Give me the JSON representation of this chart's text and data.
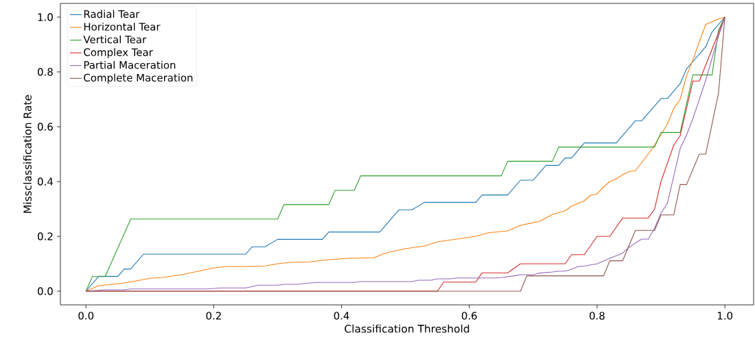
{
  "chart_data": {
    "type": "line",
    "xlabel": "Classification Threshold",
    "ylabel": "Missclassification Rate",
    "xlim": [
      -0.04,
      1.045
    ],
    "ylim": [
      -0.05,
      1.05
    ],
    "xticks": [
      {
        "value": 0,
        "label": "0.0"
      },
      {
        "value": 0.2,
        "label": "0.2"
      },
      {
        "value": 0.4,
        "label": "0.4"
      },
      {
        "value": 0.6,
        "label": "0.6"
      },
      {
        "value": 0.8,
        "label": "0.8"
      },
      {
        "value": 1,
        "label": "1.0"
      }
    ],
    "yticks": [
      {
        "value": 0,
        "label": "0.0"
      },
      {
        "value": 0.2,
        "label": "0.2"
      },
      {
        "value": 0.4,
        "label": "0.4"
      },
      {
        "value": 0.6,
        "label": "0.6"
      },
      {
        "value": 0.8,
        "label": "0.8"
      },
      {
        "value": 1,
        "label": "1.0"
      }
    ],
    "grid": false,
    "legend": "top left",
    "marker": "none",
    "line_style": "solid",
    "series": [
      {
        "name": "Radial Tear",
        "color": "#1f77b4",
        "x": [
          0,
          0.02,
          0.05,
          0.06,
          0.07,
          0.09,
          0.25,
          0.26,
          0.28,
          0.3,
          0.37,
          0.38,
          0.46,
          0.49,
          0.51,
          0.53,
          0.61,
          0.62,
          0.66,
          0.68,
          0.7,
          0.72,
          0.74,
          0.75,
          0.76,
          0.78,
          0.83,
          0.86,
          0.87,
          0.9,
          0.91,
          0.93,
          0.94,
          0.97,
          0.98,
          1.0
        ],
        "values": [
          0,
          0.054,
          0.054,
          0.081,
          0.081,
          0.135,
          0.135,
          0.162,
          0.162,
          0.189,
          0.189,
          0.216,
          0.216,
          0.297,
          0.297,
          0.324,
          0.324,
          0.351,
          0.351,
          0.405,
          0.405,
          0.459,
          0.459,
          0.486,
          0.486,
          0.541,
          0.541,
          0.622,
          0.622,
          0.703,
          0.703,
          0.757,
          0.811,
          0.892,
          0.946,
          1.0
        ]
      },
      {
        "name": "Horizontal Tear",
        "color": "#ff7f0e",
        "x": [
          0,
          0.01,
          0.02,
          0.04,
          0.06,
          0.08,
          0.1,
          0.12,
          0.15,
          0.18,
          0.2,
          0.22,
          0.25,
          0.28,
          0.3,
          0.32,
          0.35,
          0.38,
          0.41,
          0.45,
          0.47,
          0.5,
          0.53,
          0.55,
          0.58,
          0.61,
          0.63,
          0.66,
          0.68,
          0.71,
          0.73,
          0.75,
          0.76,
          0.77,
          0.78,
          0.79,
          0.8,
          0.81,
          0.82,
          0.83,
          0.84,
          0.85,
          0.86,
          0.87,
          0.88,
          0.89,
          0.91,
          0.92,
          0.93,
          0.94,
          0.95,
          0.96,
          0.97,
          0.99,
          1.0
        ],
        "values": [
          0,
          0.01,
          0.02,
          0.025,
          0.03,
          0.038,
          0.047,
          0.05,
          0.06,
          0.075,
          0.085,
          0.09,
          0.09,
          0.092,
          0.1,
          0.105,
          0.107,
          0.115,
          0.12,
          0.122,
          0.14,
          0.155,
          0.165,
          0.18,
          0.19,
          0.2,
          0.213,
          0.22,
          0.24,
          0.255,
          0.28,
          0.293,
          0.31,
          0.32,
          0.33,
          0.35,
          0.355,
          0.38,
          0.4,
          0.41,
          0.425,
          0.436,
          0.44,
          0.47,
          0.5,
          0.533,
          0.61,
          0.667,
          0.7,
          0.786,
          0.844,
          0.91,
          0.973,
          0.993,
          1.0
        ]
      },
      {
        "name": "Vertical Tear",
        "color": "#2ca02c",
        "x": [
          0,
          0.01,
          0.03,
          0.07,
          0.3,
          0.31,
          0.38,
          0.39,
          0.42,
          0.43,
          0.65,
          0.66,
          0.73,
          0.74,
          0.89,
          0.9,
          0.93,
          0.95,
          0.98,
          0.99,
          1.0
        ],
        "values": [
          0,
          0.053,
          0.053,
          0.263,
          0.263,
          0.316,
          0.316,
          0.368,
          0.368,
          0.421,
          0.421,
          0.474,
          0.474,
          0.526,
          0.526,
          0.579,
          0.579,
          0.789,
          0.789,
          0.953,
          1.0
        ]
      },
      {
        "name": "Complex Tear",
        "color": "#d62728",
        "x": [
          0,
          0.55,
          0.56,
          0.61,
          0.62,
          0.66,
          0.68,
          0.75,
          0.76,
          0.78,
          0.8,
          0.82,
          0.84,
          0.88,
          0.89,
          0.9,
          0.92,
          0.93,
          0.95,
          0.96,
          1.0
        ],
        "values": [
          0,
          0,
          0.033,
          0.033,
          0.067,
          0.067,
          0.1,
          0.1,
          0.133,
          0.133,
          0.2,
          0.2,
          0.267,
          0.267,
          0.3,
          0.4,
          0.533,
          0.567,
          0.767,
          0.767,
          1.0
        ]
      },
      {
        "name": "Partial Maceration",
        "color": "#9467bd",
        "x": [
          0,
          0.03,
          0.06,
          0.07,
          0.19,
          0.21,
          0.25,
          0.27,
          0.3,
          0.31,
          0.33,
          0.36,
          0.42,
          0.43,
          0.51,
          0.52,
          0.54,
          0.55,
          0.57,
          0.58,
          0.64,
          0.65,
          0.67,
          0.68,
          0.7,
          0.71,
          0.73,
          0.74,
          0.75,
          0.76,
          0.77,
          0.78,
          0.8,
          0.82,
          0.84,
          0.85,
          0.86,
          0.87,
          0.88,
          0.89,
          0.9,
          0.91,
          0.93,
          0.94,
          0.95,
          0.96,
          0.97,
          0.98,
          0.99,
          1.0
        ],
        "values": [
          0,
          0.005,
          0.005,
          0.008,
          0.008,
          0.012,
          0.012,
          0.022,
          0.022,
          0.025,
          0.025,
          0.032,
          0.032,
          0.035,
          0.035,
          0.04,
          0.04,
          0.045,
          0.045,
          0.048,
          0.048,
          0.05,
          0.056,
          0.06,
          0.06,
          0.066,
          0.07,
          0.073,
          0.073,
          0.08,
          0.09,
          0.092,
          0.1,
          0.12,
          0.139,
          0.16,
          0.176,
          0.19,
          0.19,
          0.23,
          0.285,
          0.32,
          0.52,
          0.57,
          0.63,
          0.7,
          0.77,
          0.85,
          0.93,
          1.0
        ]
      },
      {
        "name": "Complete Maceration",
        "color": "#8c564b",
        "x": [
          0,
          0.68,
          0.69,
          0.81,
          0.82,
          0.84,
          0.86,
          0.89,
          0.9,
          0.92,
          0.93,
          0.94,
          0.96,
          0.97,
          0.99,
          1.0
        ],
        "values": [
          0,
          0,
          0.056,
          0.056,
          0.111,
          0.111,
          0.222,
          0.222,
          0.278,
          0.278,
          0.389,
          0.389,
          0.5,
          0.5,
          0.722,
          1.0
        ]
      }
    ]
  }
}
